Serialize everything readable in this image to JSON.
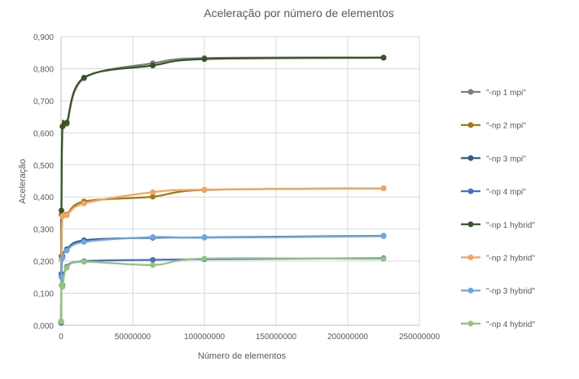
{
  "chart_data": {
    "type": "line",
    "title": "Aceleração por número de elementos",
    "xlabel": "Número de elementos",
    "ylabel": "Aceleração",
    "xlim": [
      0,
      250000000
    ],
    "ylim": [
      0,
      0.9
    ],
    "x_ticks": [
      "0",
      "50000000",
      "100000000",
      "150000000",
      "200000000",
      "250000000"
    ],
    "y_ticks": [
      "0,000",
      "0,100",
      "0,200",
      "0,300",
      "0,400",
      "0,500",
      "0,600",
      "0,700",
      "0,800",
      "0,900"
    ],
    "grid": "horizontal",
    "legend_position": "right",
    "x": [
      15625,
      250000,
      1000000,
      4000000,
      16000000,
      64000000,
      100000000,
      225000000
    ],
    "series": [
      {
        "name": "\"-np 1 mpi\"",
        "color": "#7f7f7f",
        "values": [
          0.008,
          0.345,
          0.62,
          0.628,
          0.77,
          0.817,
          0.833,
          0.835
        ]
      },
      {
        "name": "\"-np 2 mpi\"",
        "color": "#9e7a12",
        "values": [
          0.008,
          0.215,
          0.345,
          0.345,
          0.386,
          0.401,
          0.422,
          0.427
        ]
      },
      {
        "name": "\"-np 3 mpi\"",
        "color": "#2e5c8a",
        "values": [
          0.008,
          0.16,
          0.215,
          0.237,
          0.265,
          0.273,
          0.274,
          0.279
        ]
      },
      {
        "name": "\"-np 4 mpi\"",
        "color": "#4472c4",
        "values": [
          0.008,
          0.155,
          0.125,
          0.183,
          0.2,
          0.204,
          0.206,
          0.209
        ]
      },
      {
        "name": "\"-np 1 hybrid\"",
        "color": "#375623",
        "values": [
          0.012,
          0.358,
          0.62,
          0.632,
          0.772,
          0.81,
          0.83,
          0.834
        ]
      },
      {
        "name": "\"-np 2 hybrid\"",
        "color": "#f4a460",
        "values": [
          0.012,
          0.205,
          0.34,
          0.343,
          0.38,
          0.415,
          0.423,
          0.427
        ]
      },
      {
        "name": "\"-np 3 hybrid\"",
        "color": "#6fa8dc",
        "values": [
          0.012,
          0.15,
          0.21,
          0.233,
          0.26,
          0.275,
          0.273,
          0.278
        ]
      },
      {
        "name": "\"-np 4 hybrid\"",
        "color": "#93c47d",
        "values": [
          0.012,
          0.125,
          0.12,
          0.18,
          0.198,
          0.188,
          0.208,
          0.207
        ]
      }
    ]
  }
}
